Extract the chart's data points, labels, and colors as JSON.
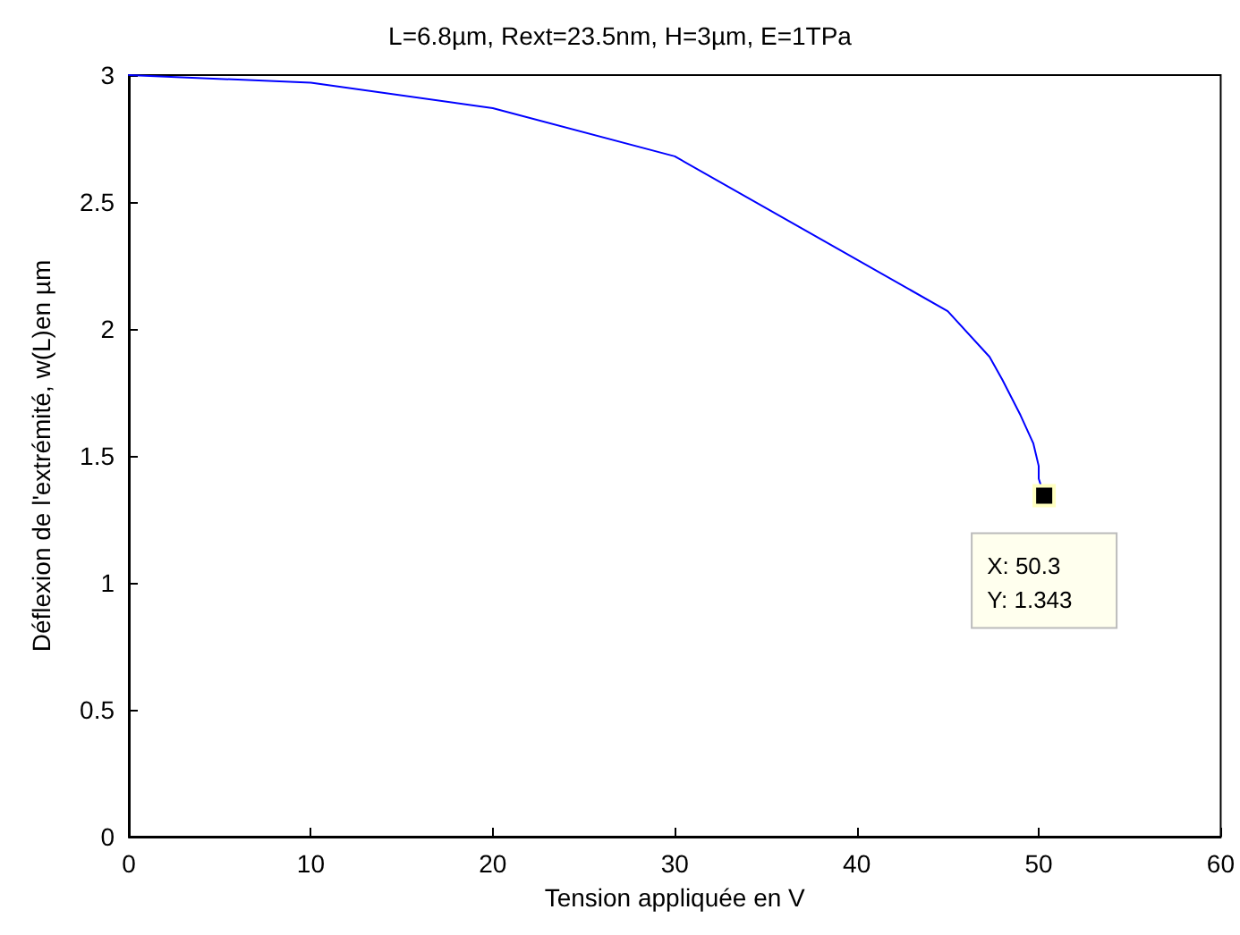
{
  "chart_data": {
    "type": "line",
    "title": "L=6.8µm, Rext=23.5nm, H=3µm, E=1TPa",
    "xlabel": "Tension appliquée en V",
    "ylabel": "Déflexion de l'extrémité, w(L)en µm",
    "x": [
      0,
      10,
      20,
      30,
      45,
      47.3,
      48,
      49,
      49.7,
      50,
      50,
      50.3
    ],
    "series": [
      {
        "color": "#0000ff",
        "values": [
          3,
          2.97,
          2.87,
          2.68,
          2.07,
          1.89,
          1.8,
          1.66,
          1.55,
          1.46,
          1.41,
          1.343
        ]
      }
    ],
    "xlim": [
      0,
      60
    ],
    "xticks": [
      0,
      10,
      20,
      30,
      40,
      50,
      60
    ],
    "ylim": [
      0,
      3
    ],
    "yticks": [
      0,
      0.5,
      1,
      1.5,
      2,
      2.5,
      3
    ],
    "grid": false,
    "marker": "none",
    "line_style": "solid",
    "annotations": [
      {
        "text": "X: 50.3\nY: 1.343",
        "x": 50.3,
        "y": 1.343
      }
    ]
  }
}
